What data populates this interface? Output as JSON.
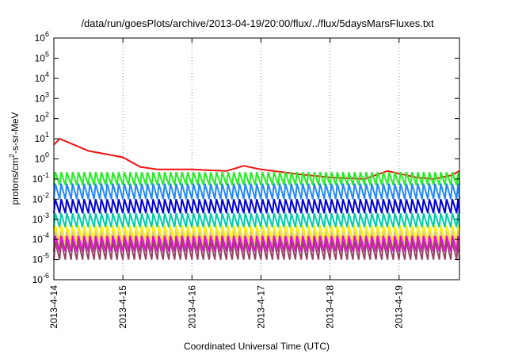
{
  "chart_data": {
    "type": "line",
    "title": "/data/run/goesPlots/archive/2013-04-19/20:00/flux/../flux/5daysMarsFluxes.txt",
    "xlabel": "Coordinated Universal Time (UTC)",
    "ylabel_parts": [
      "protons/cm",
      "2",
      "-s-sr-MeV"
    ],
    "y_scale": "log",
    "ylim": [
      1e-06,
      1000000.0
    ],
    "y_ticks": [
      {
        "base": "10",
        "exp": "-6",
        "value": -6
      },
      {
        "base": "10",
        "exp": "-5",
        "value": -5
      },
      {
        "base": "10",
        "exp": "-4",
        "value": -4
      },
      {
        "base": "10",
        "exp": "-3",
        "value": -3
      },
      {
        "base": "10",
        "exp": "-2",
        "value": -2
      },
      {
        "base": "10",
        "exp": "-1",
        "value": -1
      },
      {
        "base": "10",
        "exp": "0",
        "value": 0
      },
      {
        "base": "10",
        "exp": "1",
        "value": 1
      },
      {
        "base": "10",
        "exp": "2",
        "value": 2
      },
      {
        "base": "10",
        "exp": "3",
        "value": 3
      },
      {
        "base": "10",
        "exp": "4",
        "value": 4
      },
      {
        "base": "10",
        "exp": "5",
        "value": 5
      },
      {
        "base": "10",
        "exp": "6",
        "value": 6
      }
    ],
    "x_ticks": [
      "2013-4-14",
      "2013-4-15",
      "2013-4-16",
      "2013-4-17",
      "2013-4-18",
      "2013-4-19"
    ],
    "xlim": [
      "2013-04-14T00:00",
      "2013-04-19T21:00"
    ],
    "grid": true,
    "series_colors": [
      "#ee1111",
      "#22ee22",
      "#2288ff",
      "#0000dd",
      "#00ccaa",
      "#ffee00",
      "#ddcc88",
      "#ee00ee",
      "#994466"
    ],
    "series": [
      {
        "color": "#ee1111",
        "points": [
          [
            "2013-04-14T00:00",
            5
          ],
          [
            "2013-04-14T02:00",
            10
          ],
          [
            "2013-04-14T12:00",
            2.5
          ],
          [
            "2013-04-15T00:00",
            1.2
          ],
          [
            "2013-04-15T06:00",
            0.4
          ],
          [
            "2013-04-15T12:00",
            0.3
          ],
          [
            "2013-04-16T00:00",
            0.3
          ],
          [
            "2013-04-16T12:00",
            0.25
          ],
          [
            "2013-04-16T18:00",
            0.45
          ],
          [
            "2013-04-17T00:00",
            0.3
          ],
          [
            "2013-04-17T12:00",
            0.18
          ],
          [
            "2013-04-18T00:00",
            0.12
          ],
          [
            "2013-04-18T12:00",
            0.1
          ],
          [
            "2013-04-18T20:00",
            0.25
          ],
          [
            "2013-04-19T06:00",
            0.12
          ],
          [
            "2013-04-19T12:00",
            0.1
          ],
          [
            "2013-04-19T18:00",
            0.15
          ],
          [
            "2013-04-19T21:00",
            0.25
          ]
        ]
      },
      {
        "color": "#22ee22",
        "peak": 0.22,
        "trough": 0.05
      },
      {
        "color": "#2288ff",
        "peak": 0.06,
        "trough": 0.01
      },
      {
        "color": "#0000dd",
        "peak": 0.01,
        "trough": 0.002
      },
      {
        "color": "#00ccaa",
        "peak": 0.002,
        "trough": 0.0004
      },
      {
        "color": "#ffee00",
        "peak": 0.0005,
        "trough": 8e-05
      },
      {
        "color": "#ddcc88",
        "peak": 0.00025,
        "trough": 4e-05
      },
      {
        "color": "#ee00ee",
        "peak": 0.00015,
        "trough": 2.5e-05
      },
      {
        "color": "#994466",
        "peak": 8e-05,
        "trough": 1e-05
      }
    ]
  }
}
